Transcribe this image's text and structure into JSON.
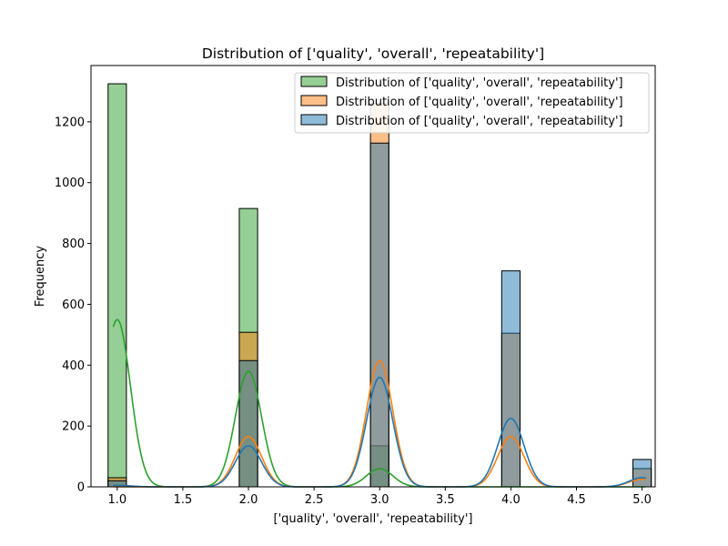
{
  "chart_data": {
    "type": "bar",
    "title": "Distribution of ['quality', 'overall', 'repeatability']",
    "xlabel": "['quality', 'overall', 'repeatability']",
    "ylabel": "Frequency",
    "xlim": [
      0.8,
      5.1
    ],
    "ylim": [
      0,
      1385
    ],
    "xticks": [
      "1.0",
      "1.5",
      "2.0",
      "2.5",
      "3.0",
      "3.5",
      "4.0",
      "4.5",
      "5.0"
    ],
    "yticks": [
      "0",
      "200",
      "400",
      "600",
      "800",
      "1000",
      "1200"
    ],
    "legend_position": "upper right",
    "series": [
      {
        "name": "Distribution of ['quality', 'overall', 'repeatability']",
        "color": "#2ca02c",
        "bin_counts": [
          {
            "x": 1.0,
            "count": 1325
          },
          {
            "x": 2.0,
            "count": 915
          },
          {
            "x": 3.0,
            "count": 135
          },
          {
            "x": 4.0,
            "count": 0
          },
          {
            "x": 5.0,
            "count": 0
          }
        ],
        "kde": {
          "peaks": [
            550,
            380,
            60,
            0,
            0
          ],
          "sigma": 0.1
        }
      },
      {
        "name": "Distribution of ['quality', 'overall', 'repeatability']",
        "color": "#ff7f0e",
        "bin_counts": [
          {
            "x": 1.0,
            "count": 30
          },
          {
            "x": 2.0,
            "count": 508
          },
          {
            "x": 3.0,
            "count": 1260
          },
          {
            "x": 4.0,
            "count": 505
          },
          {
            "x": 5.0,
            "count": 60
          }
        ],
        "kde": {
          "peaks": [
            0,
            165,
            415,
            165,
            25
          ],
          "sigma": 0.1
        }
      },
      {
        "name": "Distribution of ['quality', 'overall', 'repeatability']",
        "color": "#1f77b4",
        "bin_counts": [
          {
            "x": 1.0,
            "count": 20
          },
          {
            "x": 2.0,
            "count": 415
          },
          {
            "x": 3.0,
            "count": 1130
          },
          {
            "x": 4.0,
            "count": 710
          },
          {
            "x": 5.0,
            "count": 90
          }
        ],
        "kde": {
          "peaks": [
            5,
            135,
            360,
            225,
            30
          ],
          "sigma": 0.1
        }
      }
    ]
  }
}
